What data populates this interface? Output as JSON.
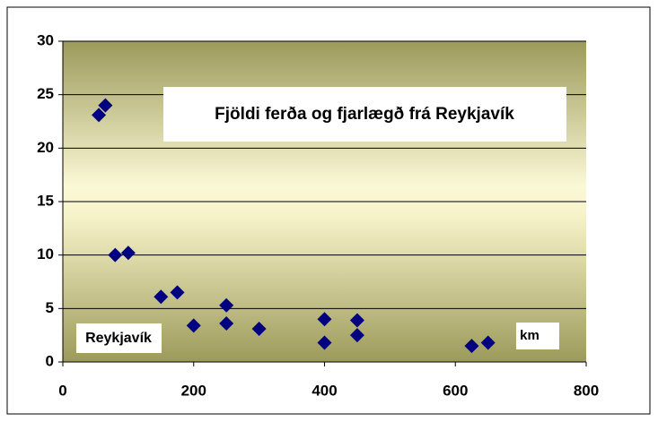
{
  "chart_data": {
    "type": "scatter",
    "title": "Fjöldi ferða og fjarlægð frá Reykjavík",
    "annotations": [
      "Reykjavík",
      "km"
    ],
    "series": [
      {
        "name": null,
        "color": "#000080",
        "x": [
          55,
          65,
          80,
          100,
          150,
          175,
          200,
          250,
          250,
          300,
          400,
          400,
          450,
          450,
          625,
          650
        ],
        "values": [
          23.1,
          24,
          10,
          10.2,
          6.1,
          6.5,
          3.4,
          5.3,
          3.6,
          3.1,
          4,
          1.8,
          3.9,
          2.5,
          1.5,
          1.8
        ]
      }
    ],
    "xlim": [
      0,
      800
    ],
    "xticks": [
      0,
      200,
      400,
      600,
      800
    ],
    "ylim": [
      0,
      30
    ],
    "yticks": [
      0,
      5,
      10,
      15,
      20,
      25,
      30
    ],
    "grid": true
  }
}
